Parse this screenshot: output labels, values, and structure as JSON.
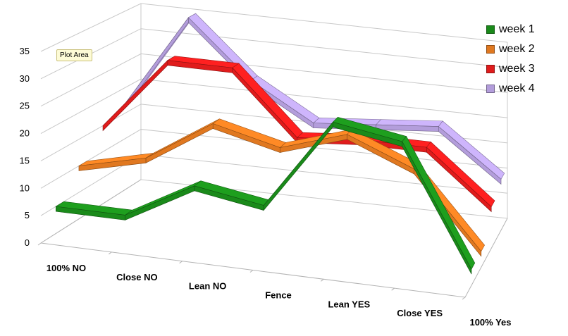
{
  "chart_data": {
    "type": "line",
    "categories": [
      "100% NO",
      "Close NO",
      "Lean NO",
      "Fence",
      "Lean YES",
      "Close YES",
      "100% Yes"
    ],
    "ylim": [
      0,
      35
    ],
    "yticks": [
      "0",
      "5",
      "10",
      "15",
      "20",
      "25",
      "30",
      "35"
    ],
    "grid": true,
    "legend_position": "top-right",
    "series": [
      {
        "name": "week 1",
        "color": "#1a8a1a",
        "values": [
          5,
          5,
          12,
          10,
          27,
          25,
          3
        ]
      },
      {
        "name": "week 2",
        "color": "#e07820",
        "values": [
          10,
          13,
          21,
          18,
          22,
          17,
          3
        ]
      },
      {
        "name": "week 3",
        "color": "#e01c1c",
        "values": [
          15,
          29,
          29,
          17,
          18,
          18,
          8
        ]
      },
      {
        "name": "week 4",
        "color": "#b39ddb",
        "values": [
          17,
          35,
          24,
          17,
          18,
          19,
          10
        ]
      }
    ]
  },
  "tooltip": "Plot Area"
}
